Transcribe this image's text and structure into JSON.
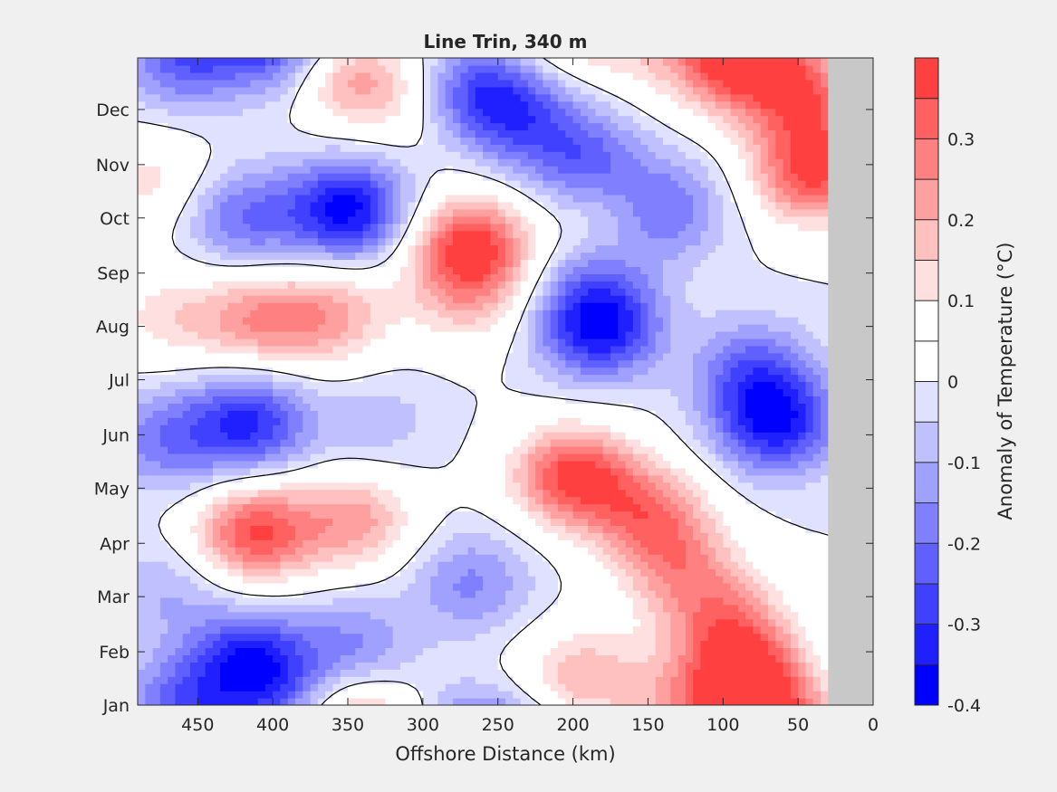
{
  "chart_data": {
    "type": "heatmap",
    "subtype": "filled-contour",
    "title": "Line Trin, 340 m",
    "xlabel": "Offshore Distance (km)",
    "ylabel": "",
    "xlim": [
      490,
      0
    ],
    "x_direction": "reversed",
    "xticks": [
      450,
      400,
      350,
      300,
      250,
      200,
      150,
      100,
      50,
      0
    ],
    "yticks": [
      "Jan",
      "Feb",
      "Mar",
      "Apr",
      "May",
      "Jun",
      "Jul",
      "Aug",
      "Sep",
      "Oct",
      "Nov",
      "Dec"
    ],
    "y_start_day": 1,
    "y_end_day": 365,
    "no_data_region_x": [
      30,
      0
    ],
    "colorbar": {
      "label": "Anomaly of Temperature (°C)",
      "clim": [
        -0.4,
        0.4
      ],
      "levels": [
        -0.4,
        -0.35,
        -0.3,
        -0.25,
        -0.2,
        -0.15,
        -0.1,
        -0.05,
        0,
        0.05,
        0.1,
        0.15,
        0.2,
        0.25,
        0.3,
        0.35,
        0.4
      ],
      "tick_values": [
        -0.4,
        -0.3,
        -0.2,
        -0.1,
        0,
        0.1,
        0.2,
        0.3
      ],
      "tick_labels": [
        "-0.4",
        "-0.3",
        "-0.2",
        "-0.1",
        "0",
        "0.1",
        "0.2",
        "0.3"
      ],
      "colors": [
        "#0000ff",
        "#2020ff",
        "#4040ff",
        "#6060ff",
        "#8080ff",
        "#a0a0ff",
        "#c0c0ff",
        "#e0e0ff",
        "#ffffff",
        "#ffffff",
        "#ffe0e0",
        "#ffc0c0",
        "#ffa0a0",
        "#ff8080",
        "#ff6060",
        "#ff4040",
        "#ff2020",
        "#ff0000"
      ]
    },
    "colors": {
      "no_data": "#c8c8c8",
      "axes": "#262626",
      "background": "#f0f0f0",
      "contour": "#000000"
    },
    "anomaly_centers": [
      {
        "x": 412,
        "y": 98,
        "amp": 0.35
      },
      {
        "x": 345,
        "y": 105,
        "amp": 0.22
      },
      {
        "x": 415,
        "y": 26,
        "amp": -0.32
      },
      {
        "x": 345,
        "y": 35,
        "amp": -0.15
      },
      {
        "x": 470,
        "y": 65,
        "amp": -0.1
      },
      {
        "x": 268,
        "y": 70,
        "amp": -0.16
      },
      {
        "x": 195,
        "y": 18,
        "amp": 0.18
      },
      {
        "x": 85,
        "y": 20,
        "amp": 0.3
      },
      {
        "x": 100,
        "y": 50,
        "amp": 0.22
      },
      {
        "x": 200,
        "y": 130,
        "amp": 0.37
      },
      {
        "x": 150,
        "y": 110,
        "amp": 0.25
      },
      {
        "x": 130,
        "y": 80,
        "amp": 0.2
      },
      {
        "x": 415,
        "y": 160,
        "amp": -0.3
      },
      {
        "x": 470,
        "y": 150,
        "amp": -0.18
      },
      {
        "x": 330,
        "y": 160,
        "amp": -0.08
      },
      {
        "x": 65,
        "y": 160,
        "amp": -0.34
      },
      {
        "x": 80,
        "y": 190,
        "amp": -0.2
      },
      {
        "x": 410,
        "y": 218,
        "amp": 0.22
      },
      {
        "x": 360,
        "y": 220,
        "amp": 0.2
      },
      {
        "x": 470,
        "y": 220,
        "amp": 0.12
      },
      {
        "x": 183,
        "y": 213,
        "amp": -0.35
      },
      {
        "x": 185,
        "y": 240,
        "amp": -0.12
      },
      {
        "x": 268,
        "y": 260,
        "amp": 0.37
      },
      {
        "x": 270,
        "y": 230,
        "amp": 0.15
      },
      {
        "x": 350,
        "y": 280,
        "amp": -0.37
      },
      {
        "x": 420,
        "y": 275,
        "amp": -0.2
      },
      {
        "x": 175,
        "y": 280,
        "amp": 0.1
      },
      {
        "x": 140,
        "y": 280,
        "amp": -0.22
      },
      {
        "x": 190,
        "y": 305,
        "amp": -0.22
      },
      {
        "x": 40,
        "y": 300,
        "amp": 0.35
      },
      {
        "x": 45,
        "y": 340,
        "amp": 0.28
      },
      {
        "x": 100,
        "y": 355,
        "amp": 0.12
      },
      {
        "x": 80,
        "y": 365,
        "amp": 0.2
      },
      {
        "x": 265,
        "y": 345,
        "amp": -0.28
      },
      {
        "x": 230,
        "y": 330,
        "amp": -0.18
      },
      {
        "x": 350,
        "y": 355,
        "amp": 0.24
      },
      {
        "x": 300,
        "y": 340,
        "amp": 0.1
      },
      {
        "x": 460,
        "y": 365,
        "amp": -0.22
      },
      {
        "x": 390,
        "y": 365,
        "amp": -0.15
      },
      {
        "x": 140,
        "y": 370,
        "amp": 0.1
      },
      {
        "x": 480,
        "y": 295,
        "amp": 0.12
      }
    ]
  }
}
